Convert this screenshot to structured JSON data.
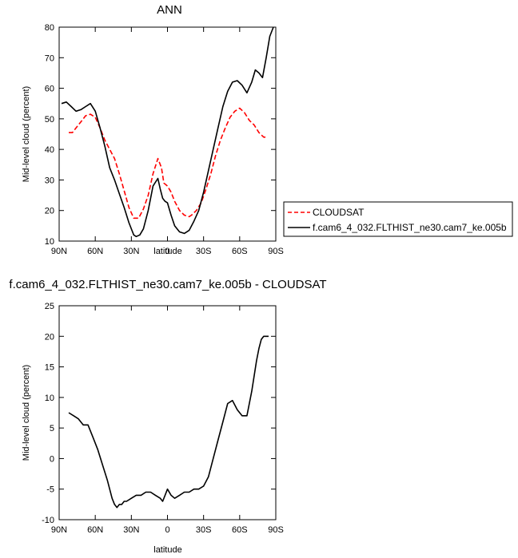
{
  "colors": {
    "cloudsat": "#ff0000",
    "model": "#000000"
  },
  "chart_data": [
    {
      "type": "line",
      "title": "ANN",
      "xlabel": "latitude",
      "ylabel": "Mid-level cloud (percent)",
      "xlim": [
        90,
        -90
      ],
      "ylim": [
        10,
        80
      ],
      "xticks": [
        90,
        60,
        30,
        0,
        -30,
        -60,
        -90
      ],
      "xtick_labels": [
        "90N",
        "60N",
        "30N",
        "0",
        "30S",
        "60S",
        "90S"
      ],
      "yticks": [
        10,
        20,
        30,
        40,
        50,
        60,
        70,
        80
      ],
      "ytick_labels": [
        "10",
        "20",
        "30",
        "40",
        "50",
        "60",
        "70",
        "80"
      ],
      "legend_placement": "right",
      "series": [
        {
          "name": "CLOUDSAT",
          "style": "dashed",
          "color": "#ff0000",
          "x": [
            82,
            79,
            76,
            72,
            68,
            64,
            60,
            56,
            52,
            48,
            44,
            40,
            36,
            32,
            28,
            24,
            20,
            16,
            12,
            8,
            5,
            3,
            0,
            -3,
            -6,
            -10,
            -14,
            -18,
            -20,
            -24,
            -28,
            -32,
            -36,
            -40,
            -44,
            -48,
            -52,
            -56,
            -60,
            -64,
            -68,
            -72,
            -76,
            -80,
            -83
          ],
          "y": [
            45.5,
            45.5,
            47,
            49,
            51,
            51.5,
            50.5,
            47,
            43,
            40,
            37,
            32,
            26.5,
            21,
            17.5,
            17.5,
            20.5,
            25,
            32,
            37,
            34,
            29,
            28,
            26,
            23,
            20,
            18.5,
            18,
            18.5,
            20,
            22.5,
            27,
            32,
            38,
            43,
            47,
            50.5,
            52.5,
            53.5,
            52,
            49.5,
            48,
            45.5,
            44,
            44
          ]
        },
        {
          "name": "f.cam6_4_032.FLTHIST_ne30.cam7_ke.005b",
          "style": "solid",
          "color": "#000000",
          "x": [
            88,
            84,
            80,
            76,
            72,
            68,
            64,
            60,
            56,
            52,
            48,
            44,
            40,
            36,
            32,
            28,
            26,
            23,
            20,
            16,
            12,
            8,
            6,
            4,
            2,
            0,
            -3,
            -6,
            -10,
            -14,
            -18,
            -22,
            -26,
            -30,
            -34,
            -38,
            -42,
            -46,
            -50,
            -54,
            -58,
            -62,
            -66,
            -70,
            -73,
            -76,
            -79,
            -82,
            -85,
            -88
          ],
          "y": [
            55,
            55.5,
            54,
            52.5,
            53,
            54,
            55,
            52.5,
            47,
            41,
            34,
            30,
            25.5,
            21,
            16,
            12,
            11.5,
            12,
            14,
            20,
            28,
            30.5,
            27,
            24,
            23,
            22.5,
            18.5,
            15,
            13,
            12.5,
            13.5,
            16.5,
            20,
            26,
            33,
            40,
            47,
            54,
            59,
            62,
            62.5,
            61,
            58.5,
            62,
            66,
            65,
            63.5,
            70,
            77,
            80
          ]
        }
      ]
    },
    {
      "type": "line",
      "title": "f.cam6_4_032.FLTHIST_ne30.cam7_ke.005b - CLOUDSAT",
      "xlabel": "latitude",
      "ylabel": "Mid-level cloud (percent)",
      "xlim": [
        90,
        -90
      ],
      "ylim": [
        -10,
        25
      ],
      "xticks": [
        90,
        60,
        30,
        0,
        -30,
        -60,
        -90
      ],
      "xtick_labels": [
        "90N",
        "60N",
        "30N",
        "0",
        "30S",
        "60S",
        "90S"
      ],
      "yticks": [
        -10,
        -5,
        0,
        5,
        10,
        15,
        20,
        25
      ],
      "ytick_labels": [
        "-10",
        "-5",
        "0",
        "5",
        "10",
        "15",
        "20",
        "25"
      ],
      "series": [
        {
          "name": "",
          "style": "solid",
          "color": "#000000",
          "x": [
            82,
            78,
            74,
            70,
            66,
            62,
            58,
            54,
            50,
            46,
            44,
            42,
            40,
            38,
            36,
            34,
            30,
            26,
            22,
            18,
            14,
            10,
            6,
            4,
            2,
            0,
            -3,
            -6,
            -10,
            -14,
            -18,
            -22,
            -26,
            -30,
            -34,
            -38,
            -42,
            -46,
            -50,
            -54,
            -58,
            -62,
            -66,
            -68,
            -70,
            -72,
            -74,
            -76,
            -78,
            -80,
            -82,
            -84
          ],
          "y": [
            7.5,
            7,
            6.5,
            5.5,
            5.5,
            3.5,
            1.5,
            -1,
            -3.5,
            -6.5,
            -7.5,
            -8,
            -7.5,
            -7.5,
            -7,
            -7,
            -6.5,
            -6,
            -6,
            -5.5,
            -5.5,
            -6,
            -6.5,
            -7,
            -6,
            -5,
            -6,
            -6.5,
            -6,
            -5.5,
            -5.5,
            -5,
            -5,
            -4.5,
            -3,
            0,
            3,
            6,
            9,
            9.5,
            8,
            7,
            7,
            9,
            11,
            13.5,
            16,
            18,
            19.5,
            20,
            20,
            20
          ]
        }
      ]
    }
  ]
}
